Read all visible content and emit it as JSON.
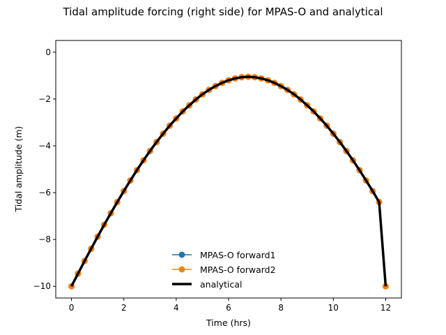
{
  "chart_data": {
    "type": "line",
    "title": "Tidal amplitude forcing (right side) for MPAS-O and analytical",
    "xlabel": "Time (hrs)",
    "ylabel": "Tidal amplitude (m)",
    "xlim": [
      -0.6,
      12.6
    ],
    "ylim": [
      -10.5,
      0.5
    ],
    "xticks": [
      0,
      2,
      4,
      6,
      8,
      10,
      12
    ],
    "yticks": [
      -10,
      -8,
      -6,
      -4,
      -2,
      0
    ],
    "xtick_labels": [
      "0",
      "2",
      "4",
      "6",
      "8",
      "10",
      "12"
    ],
    "ytick_labels": [
      "−10",
      "−8",
      "−6",
      "−4",
      "−2",
      "0"
    ],
    "legend_position": "lower-center",
    "series": [
      {
        "name": "MPAS-O forward1",
        "color": "#1f77b4",
        "style": "line-markers",
        "x": [
          0,
          0.25,
          0.5,
          0.75,
          1,
          1.25,
          1.5,
          1.75,
          2,
          2.25,
          2.5,
          2.75,
          3,
          3.25,
          3.5,
          3.75,
          4,
          4.25,
          4.5,
          4.75,
          5,
          5.25,
          5.5,
          5.75,
          6,
          6.25,
          6.5,
          6.75,
          7,
          7.25,
          7.5,
          7.75,
          8,
          8.25,
          8.5,
          8.75,
          9,
          9.25,
          9.5,
          9.75,
          10,
          10.25,
          10.5,
          10.75,
          11,
          11.25,
          11.5,
          11.75,
          12
        ],
        "y": [
          -10,
          -9.46,
          -8.92,
          -8.4,
          -7.88,
          -7.37,
          -6.88,
          -6.4,
          -5.93,
          -5.48,
          -5.04,
          -4.62,
          -4.22,
          -3.84,
          -3.48,
          -3.14,
          -2.83,
          -2.53,
          -2.27,
          -2.02,
          -1.8,
          -1.61,
          -1.45,
          -1.31,
          -1.2,
          -1.12,
          -1.07,
          -1.05,
          -1.07,
          -1.12,
          -1.2,
          -1.31,
          -1.45,
          -1.61,
          -1.8,
          -2.02,
          -2.27,
          -2.53,
          -2.83,
          -3.14,
          -3.48,
          -3.84,
          -4.22,
          -4.62,
          -5.04,
          -5.48,
          -5.93,
          -6.4,
          -10
        ]
      },
      {
        "name": "MPAS-O forward2",
        "color": "#ff7f0e",
        "style": "line-markers",
        "x": [
          0,
          0.25,
          0.5,
          0.75,
          1,
          1.25,
          1.5,
          1.75,
          2,
          2.25,
          2.5,
          2.75,
          3,
          3.25,
          3.5,
          3.75,
          4,
          4.25,
          4.5,
          4.75,
          5,
          5.25,
          5.5,
          5.75,
          6,
          6.25,
          6.5,
          6.75,
          7,
          7.25,
          7.5,
          7.75,
          8,
          8.25,
          8.5,
          8.75,
          9,
          9.25,
          9.5,
          9.75,
          10,
          10.25,
          10.5,
          10.75,
          11,
          11.25,
          11.5,
          11.75,
          12
        ],
        "y": [
          -10,
          -9.46,
          -8.92,
          -8.4,
          -7.88,
          -7.37,
          -6.88,
          -6.4,
          -5.93,
          -5.48,
          -5.04,
          -4.62,
          -4.22,
          -3.84,
          -3.48,
          -3.14,
          -2.83,
          -2.53,
          -2.27,
          -2.02,
          -1.8,
          -1.61,
          -1.45,
          -1.31,
          -1.2,
          -1.12,
          -1.07,
          -1.05,
          -1.07,
          -1.12,
          -1.2,
          -1.31,
          -1.45,
          -1.61,
          -1.8,
          -2.02,
          -2.27,
          -2.53,
          -2.83,
          -3.14,
          -3.48,
          -3.84,
          -4.22,
          -4.62,
          -5.04,
          -5.48,
          -5.93,
          -6.4,
          -10
        ]
      },
      {
        "name": "analytical",
        "color": "#000000",
        "style": "thick-line",
        "x": [
          0,
          0.25,
          0.5,
          0.75,
          1,
          1.25,
          1.5,
          1.75,
          2,
          2.25,
          2.5,
          2.75,
          3,
          3.25,
          3.5,
          3.75,
          4,
          4.25,
          4.5,
          4.75,
          5,
          5.25,
          5.5,
          5.75,
          6,
          6.25,
          6.5,
          6.75,
          7,
          7.25,
          7.5,
          7.75,
          8,
          8.25,
          8.5,
          8.75,
          9,
          9.25,
          9.5,
          9.75,
          10,
          10.25,
          10.5,
          10.75,
          11,
          11.25,
          11.5,
          11.75,
          12
        ],
        "y": [
          -10,
          -9.46,
          -8.92,
          -8.4,
          -7.88,
          -7.37,
          -6.88,
          -6.4,
          -5.93,
          -5.48,
          -5.04,
          -4.62,
          -4.22,
          -3.84,
          -3.48,
          -3.14,
          -2.83,
          -2.53,
          -2.27,
          -2.02,
          -1.8,
          -1.61,
          -1.45,
          -1.31,
          -1.2,
          -1.12,
          -1.07,
          -1.05,
          -1.07,
          -1.12,
          -1.2,
          -1.31,
          -1.45,
          -1.61,
          -1.8,
          -2.02,
          -2.27,
          -2.53,
          -2.83,
          -3.14,
          -3.48,
          -3.84,
          -4.22,
          -4.62,
          -5.04,
          -5.48,
          -5.93,
          -6.4,
          -10
        ]
      }
    ]
  }
}
